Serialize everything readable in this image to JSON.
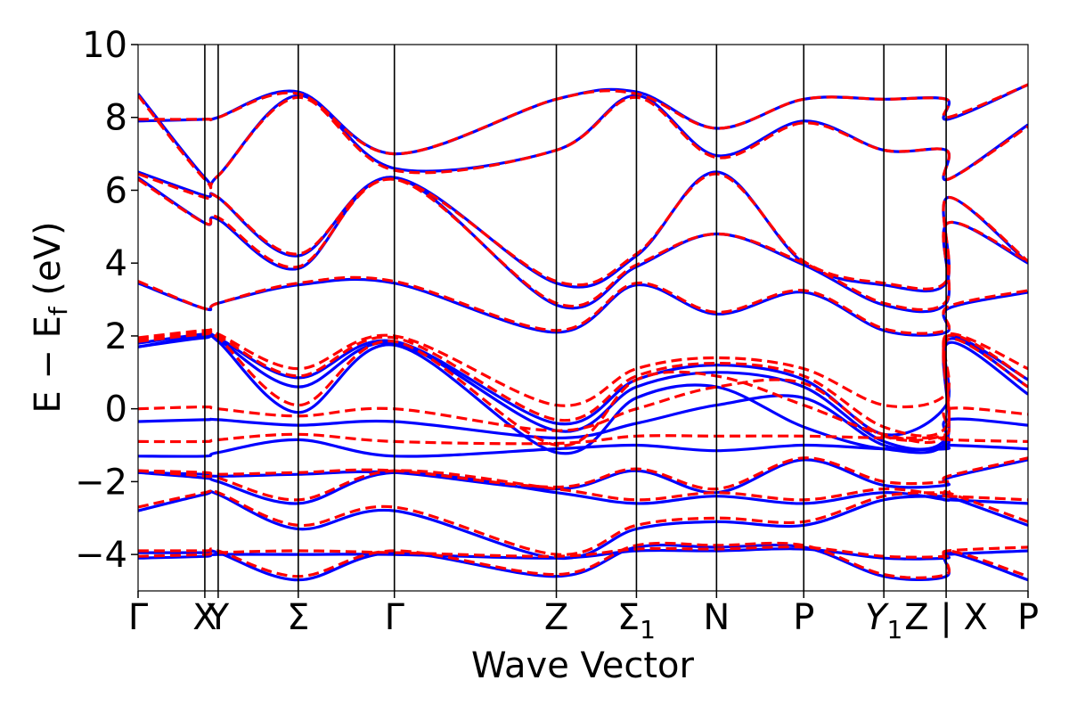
{
  "chart_data": {
    "type": "line",
    "xlabel": "Wave Vector",
    "ylabel": "E − E",
    "ylabel_sub": "f",
    "ylabel_unit": " (eV)",
    "ylim": [
      -5,
      10
    ],
    "yticks": [
      {
        "value": 10,
        "label": "10"
      },
      {
        "value": 8,
        "label": "8"
      },
      {
        "value": 6,
        "label": "6"
      },
      {
        "value": 4,
        "label": "4"
      },
      {
        "value": 2,
        "label": "2"
      },
      {
        "value": 0,
        "label": "0"
      },
      {
        "value": -2,
        "label": "−2"
      },
      {
        "value": -4,
        "label": "−4"
      }
    ],
    "xlim": [
      0,
      1
    ],
    "kpoints": [
      {
        "pos": 0.0,
        "label": "Γ"
      },
      {
        "pos": 0.075,
        "label": "X"
      },
      {
        "pos": 0.09,
        "label": "Y"
      },
      {
        "pos": 0.18,
        "label": "Σ"
      },
      {
        "pos": 0.288,
        "label": "Γ"
      },
      {
        "pos": 0.47,
        "label": "Z"
      },
      {
        "pos": 0.56,
        "label": "Σ",
        "sub": "1"
      },
      {
        "pos": 0.65,
        "label": "N"
      },
      {
        "pos": 0.748,
        "label": "P"
      },
      {
        "pos": 0.838,
        "label": "Y",
        "sub": "1",
        "italic": true
      },
      {
        "pos": 0.908,
        "label": "Z | X"
      },
      {
        "pos": 1.0,
        "label": "P"
      }
    ],
    "series_style": [
      {
        "color": "#0000ff",
        "dash": "solid",
        "width": 3.2
      },
      {
        "color": "#ff0000",
        "dash": "dashed",
        "width": 3.2
      }
    ],
    "x": [
      0.0,
      0.075,
      0.09,
      0.18,
      0.288,
      0.47,
      0.56,
      0.65,
      0.748,
      0.838,
      0.908,
      0.91,
      1.0
    ],
    "series": [
      {
        "style": 0,
        "values": [
          -4.1,
          -4.05,
          -4.0,
          -4.0,
          -4.0,
          -4.1,
          -3.9,
          -3.9,
          -3.85,
          -4.1,
          -4.1,
          -4.0,
          -3.9
        ]
      },
      {
        "style": 0,
        "values": [
          -3.95,
          -3.95,
          -3.95,
          -4.7,
          -3.95,
          -4.6,
          -3.8,
          -3.8,
          -3.8,
          -4.6,
          -4.6,
          -3.95,
          -4.7
        ]
      },
      {
        "style": 0,
        "values": [
          -2.8,
          -2.35,
          -2.35,
          -3.3,
          -2.8,
          -4.1,
          -3.3,
          -3.1,
          -3.2,
          -2.5,
          -2.4,
          -2.4,
          -3.2
        ]
      },
      {
        "style": 0,
        "values": [
          -1.75,
          -1.9,
          -2.0,
          -2.6,
          -1.75,
          -2.3,
          -2.6,
          -2.4,
          -2.6,
          -2.3,
          -2.5,
          -2.5,
          -2.6
        ]
      },
      {
        "style": 0,
        "values": [
          -1.75,
          -1.8,
          -1.85,
          -1.8,
          -1.75,
          -2.2,
          -1.7,
          -2.3,
          -1.4,
          -2.1,
          -2.1,
          -1.9,
          -1.4
        ]
      },
      {
        "style": 0,
        "values": [
          -1.3,
          -1.3,
          -1.2,
          -0.85,
          -1.3,
          -1.1,
          -1.0,
          -1.15,
          -1.0,
          -1.1,
          -1.1,
          -1.0,
          -1.1
        ]
      },
      {
        "style": 0,
        "values": [
          -0.35,
          -0.3,
          -0.3,
          -0.45,
          -0.35,
          -0.8,
          -0.4,
          0.1,
          0.3,
          -1.0,
          -1.0,
          -0.3,
          -0.45
        ]
      },
      {
        "style": 0,
        "values": [
          1.7,
          1.95,
          1.85,
          -0.1,
          1.75,
          -1.2,
          0.3,
          0.6,
          -0.5,
          -1.1,
          -0.9,
          1.8,
          0.4
        ]
      },
      {
        "style": 0,
        "values": [
          1.7,
          2.0,
          1.9,
          0.6,
          1.8,
          -0.6,
          0.6,
          1.0,
          0.6,
          -0.9,
          -0.8,
          1.9,
          0.6
        ]
      },
      {
        "style": 0,
        "values": [
          1.8,
          2.05,
          1.95,
          0.85,
          1.85,
          -0.4,
          0.8,
          1.2,
          0.8,
          -0.7,
          0.1,
          2.0,
          0.8
        ]
      },
      {
        "style": 0,
        "values": [
          3.45,
          2.75,
          2.9,
          3.4,
          3.45,
          2.1,
          3.4,
          2.6,
          3.2,
          2.15,
          2.1,
          2.75,
          3.2
        ]
      },
      {
        "style": 0,
        "values": [
          6.35,
          5.1,
          5.2,
          3.85,
          6.35,
          2.85,
          3.9,
          4.8,
          3.95,
          2.85,
          2.9,
          5.1,
          4.0
        ]
      },
      {
        "style": 0,
        "values": [
          6.5,
          5.85,
          5.8,
          4.2,
          6.35,
          3.45,
          4.2,
          6.5,
          4.0,
          3.4,
          3.45,
          5.8,
          4.0
        ]
      },
      {
        "style": 0,
        "values": [
          8.65,
          6.35,
          6.4,
          8.6,
          6.6,
          7.1,
          8.6,
          6.95,
          7.9,
          7.1,
          7.1,
          6.3,
          7.8
        ]
      },
      {
        "style": 0,
        "values": [
          7.9,
          7.95,
          8.0,
          8.7,
          7.0,
          8.5,
          8.7,
          7.7,
          8.5,
          8.5,
          8.5,
          7.95,
          8.9
        ]
      },
      {
        "style": 1,
        "values": [
          -4.05,
          -4.0,
          -3.95,
          -3.9,
          -3.95,
          -4.05,
          -3.85,
          -3.85,
          -3.8,
          -4.05,
          -4.05,
          -3.9,
          -3.8
        ]
      },
      {
        "style": 1,
        "values": [
          -3.9,
          -3.9,
          -3.9,
          -4.6,
          -3.9,
          -4.55,
          -3.75,
          -3.75,
          -3.75,
          -4.55,
          -4.55,
          -3.9,
          -4.6
        ]
      },
      {
        "style": 1,
        "values": [
          -2.7,
          -2.3,
          -2.3,
          -3.2,
          -2.7,
          -4.0,
          -3.2,
          -3.0,
          -3.1,
          -2.4,
          -2.3,
          -2.3,
          -3.1
        ]
      },
      {
        "style": 1,
        "values": [
          -1.7,
          -1.85,
          -1.9,
          -2.5,
          -1.7,
          -2.2,
          -2.5,
          -2.3,
          -2.5,
          -2.2,
          -2.4,
          -2.4,
          -2.5
        ]
      },
      {
        "style": 1,
        "values": [
          -1.7,
          -1.75,
          -1.8,
          -1.75,
          -1.7,
          -2.15,
          -1.65,
          -2.2,
          -1.35,
          -2.0,
          -2.0,
          -1.85,
          -1.35
        ]
      },
      {
        "style": 1,
        "values": [
          -0.9,
          -0.9,
          -0.85,
          -0.7,
          -0.9,
          -0.95,
          -0.75,
          -0.75,
          -0.75,
          -0.8,
          -0.8,
          -0.85,
          -0.9
        ]
      },
      {
        "style": 1,
        "values": [
          0.0,
          0.05,
          0.0,
          -0.2,
          0.0,
          -0.6,
          0.0,
          0.6,
          0.7,
          -0.75,
          -0.7,
          0.0,
          -0.15
        ]
      },
      {
        "style": 1,
        "values": [
          1.85,
          2.05,
          1.95,
          0.1,
          1.85,
          -1.0,
          0.8,
          0.9,
          0.1,
          -0.7,
          -0.7,
          1.9,
          0.6
        ]
      },
      {
        "style": 1,
        "values": [
          1.9,
          2.1,
          2.0,
          0.9,
          1.95,
          -0.3,
          0.9,
          1.25,
          0.9,
          -0.5,
          -0.5,
          2.0,
          0.8
        ]
      },
      {
        "style": 1,
        "values": [
          1.95,
          2.15,
          2.05,
          1.1,
          2.0,
          0.1,
          1.1,
          1.4,
          1.1,
          0.1,
          0.4,
          2.05,
          1.1
        ]
      },
      {
        "style": 1,
        "values": [
          3.5,
          2.75,
          2.9,
          3.45,
          3.5,
          2.15,
          3.45,
          2.65,
          3.25,
          2.2,
          2.15,
          2.8,
          3.25
        ]
      },
      {
        "style": 1,
        "values": [
          6.3,
          5.1,
          5.25,
          3.9,
          6.3,
          2.9,
          3.95,
          4.8,
          4.0,
          2.9,
          2.95,
          5.1,
          4.05
        ]
      },
      {
        "style": 1,
        "values": [
          6.45,
          5.8,
          5.8,
          4.25,
          6.3,
          3.5,
          4.25,
          6.45,
          4.05,
          3.45,
          3.5,
          5.8,
          4.05
        ]
      },
      {
        "style": 1,
        "values": [
          8.6,
          6.3,
          6.4,
          8.55,
          6.55,
          7.1,
          8.55,
          6.9,
          7.85,
          7.1,
          7.1,
          6.3,
          7.75
        ]
      },
      {
        "style": 1,
        "values": [
          7.95,
          7.95,
          8.0,
          8.65,
          7.0,
          8.5,
          8.65,
          7.7,
          8.5,
          8.5,
          8.5,
          8.0,
          8.9
        ]
      }
    ]
  }
}
